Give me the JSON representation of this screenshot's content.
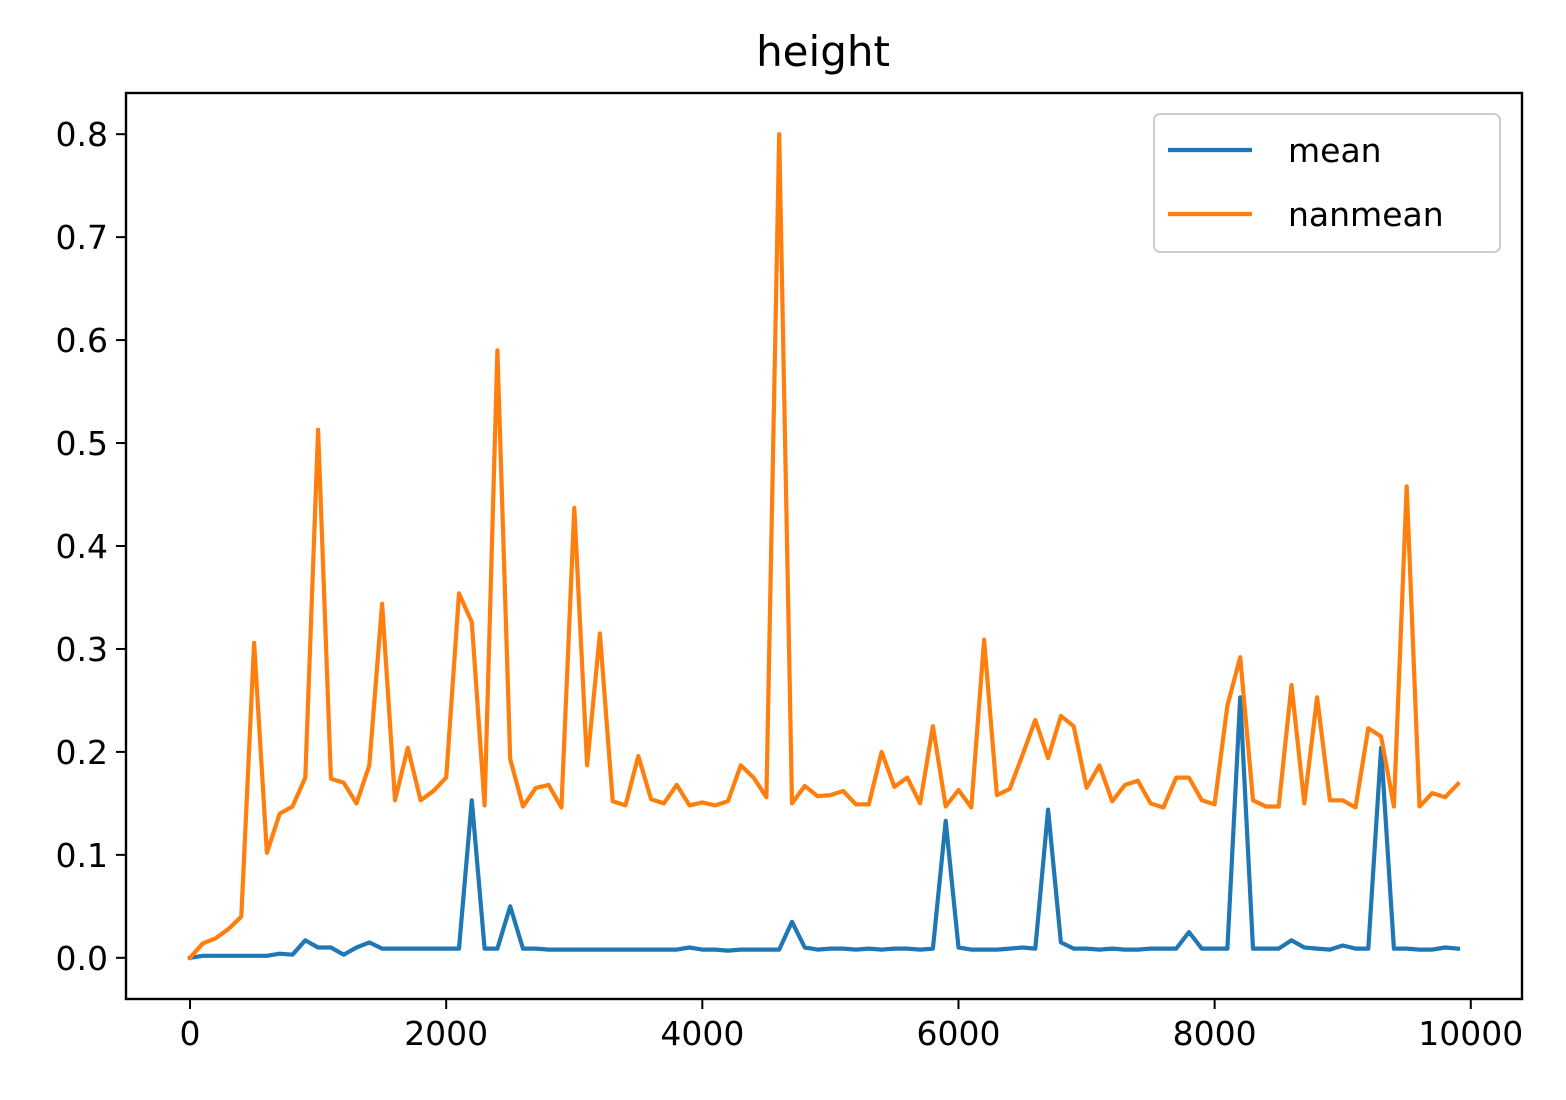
{
  "chart_data": {
    "type": "line",
    "title": "height",
    "xlabel": "",
    "ylabel": "",
    "xlim": [
      -500,
      10400
    ],
    "ylim": [
      -0.04,
      0.84
    ],
    "xticks": [
      0,
      2000,
      4000,
      6000,
      8000,
      10000
    ],
    "xtick_labels": [
      "0",
      "2000",
      "4000",
      "6000",
      "8000",
      "10000"
    ],
    "yticks": [
      0.0,
      0.1,
      0.2,
      0.3,
      0.4,
      0.5,
      0.6,
      0.7,
      0.8
    ],
    "ytick_labels": [
      "0.0",
      "0.1",
      "0.2",
      "0.3",
      "0.4",
      "0.5",
      "0.6",
      "0.7",
      "0.8"
    ],
    "grid": false,
    "legend_position": "top-right",
    "x": [
      0,
      100,
      200,
      300,
      400,
      500,
      600,
      700,
      800,
      900,
      1000,
      1100,
      1200,
      1300,
      1400,
      1500,
      1600,
      1700,
      1800,
      1900,
      2000,
      2100,
      2200,
      2300,
      2400,
      2500,
      2600,
      2700,
      2800,
      2900,
      3000,
      3100,
      3200,
      3300,
      3400,
      3500,
      3600,
      3700,
      3800,
      3900,
      4000,
      4100,
      4200,
      4300,
      4400,
      4500,
      4600,
      4700,
      4800,
      4900,
      5000,
      5100,
      5200,
      5300,
      5400,
      5500,
      5600,
      5700,
      5800,
      5900,
      6000,
      6100,
      6200,
      6300,
      6400,
      6500,
      6600,
      6700,
      6800,
      6900,
      7000,
      7100,
      7200,
      7300,
      7400,
      7500,
      7600,
      7700,
      7800,
      7900,
      8000,
      8100,
      8200,
      8300,
      8400,
      8500,
      8600,
      8700,
      8800,
      8900,
      9000,
      9100,
      9200,
      9300,
      9400,
      9500,
      9600,
      9700,
      9800,
      9900
    ],
    "series": [
      {
        "name": "mean",
        "color": "#1f77b4",
        "values": [
          0.0,
          0.002,
          0.002,
          0.002,
          0.002,
          0.002,
          0.002,
          0.004,
          0.003,
          0.017,
          0.01,
          0.01,
          0.003,
          0.01,
          0.015,
          0.009,
          0.009,
          0.009,
          0.009,
          0.009,
          0.009,
          0.009,
          0.153,
          0.009,
          0.009,
          0.05,
          0.009,
          0.009,
          0.008,
          0.008,
          0.008,
          0.008,
          0.008,
          0.008,
          0.008,
          0.008,
          0.008,
          0.008,
          0.008,
          0.01,
          0.008,
          0.008,
          0.007,
          0.008,
          0.008,
          0.008,
          0.008,
          0.035,
          0.01,
          0.008,
          0.009,
          0.009,
          0.008,
          0.009,
          0.008,
          0.009,
          0.009,
          0.008,
          0.009,
          0.133,
          0.01,
          0.008,
          0.008,
          0.008,
          0.009,
          0.01,
          0.009,
          0.144,
          0.015,
          0.009,
          0.009,
          0.008,
          0.009,
          0.008,
          0.008,
          0.009,
          0.009,
          0.009,
          0.025,
          0.009,
          0.009,
          0.009,
          0.253,
          0.009,
          0.009,
          0.009,
          0.017,
          0.01,
          0.009,
          0.008,
          0.012,
          0.009,
          0.009,
          0.204,
          0.009,
          0.009,
          0.008,
          0.008,
          0.01,
          0.009
        ]
      },
      {
        "name": "nanmean",
        "color": "#ff7f0e",
        "values": [
          0.0,
          0.014,
          0.019,
          0.028,
          0.04,
          0.306,
          0.102,
          0.14,
          0.147,
          0.175,
          0.513,
          0.174,
          0.17,
          0.15,
          0.187,
          0.344,
          0.153,
          0.204,
          0.153,
          0.162,
          0.175,
          0.354,
          0.326,
          0.148,
          0.59,
          0.193,
          0.147,
          0.165,
          0.168,
          0.146,
          0.437,
          0.187,
          0.315,
          0.152,
          0.148,
          0.196,
          0.154,
          0.15,
          0.168,
          0.148,
          0.151,
          0.148,
          0.152,
          0.187,
          0.175,
          0.156,
          0.8,
          0.15,
          0.167,
          0.157,
          0.158,
          0.162,
          0.149,
          0.149,
          0.2,
          0.166,
          0.175,
          0.15,
          0.225,
          0.147,
          0.163,
          0.146,
          0.309,
          0.158,
          0.164,
          0.197,
          0.231,
          0.194,
          0.235,
          0.225,
          0.165,
          0.187,
          0.152,
          0.168,
          0.172,
          0.15,
          0.146,
          0.175,
          0.175,
          0.153,
          0.149,
          0.245,
          0.292,
          0.153,
          0.147,
          0.147,
          0.265,
          0.15,
          0.253,
          0.153,
          0.153,
          0.146,
          0.223,
          0.215,
          0.147,
          0.458,
          0.147,
          0.16,
          0.156,
          0.169
        ]
      }
    ]
  }
}
